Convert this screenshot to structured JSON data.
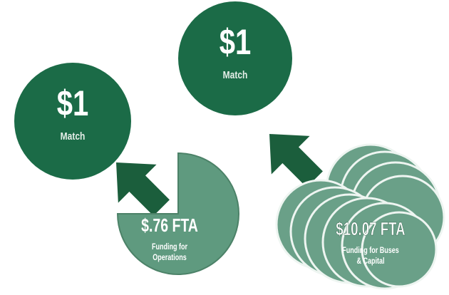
{
  "match_left": {
    "amount": "$1",
    "label": "Match"
  },
  "match_right": {
    "amount": "$1",
    "label": "Match"
  },
  "operations": {
    "amount": "$.76 FTA",
    "label_lines": [
      "Funding for",
      "Operations"
    ]
  },
  "capital": {
    "amount": "$10.07 FTA",
    "label_lines": [
      "Funding for Buses",
      "& Capital"
    ]
  }
}
